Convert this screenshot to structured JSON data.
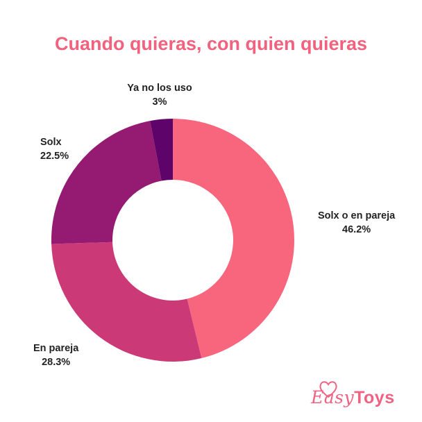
{
  "chart_data": {
    "type": "pie",
    "title": "Cuando quieras, con quien quieras",
    "donut": true,
    "slices": [
      {
        "label": "Solx o en pareja",
        "value": 46.2,
        "value_label": "46.2%",
        "color": "#f8667e"
      },
      {
        "label": "En pareja",
        "value": 28.3,
        "value_label": "28.3%",
        "color": "#cb3a77"
      },
      {
        "label": "Solx",
        "value": 22.5,
        "value_label": "22.5%",
        "color": "#941a72"
      },
      {
        "label": "Ya no los uso",
        "value": 3,
        "value_label": "3%",
        "color": "#5e0369"
      }
    ]
  },
  "colors": {
    "title": "#f0627d",
    "logo": "#f06282"
  },
  "logo": {
    "easy": "Easy",
    "toys": "Toys"
  }
}
